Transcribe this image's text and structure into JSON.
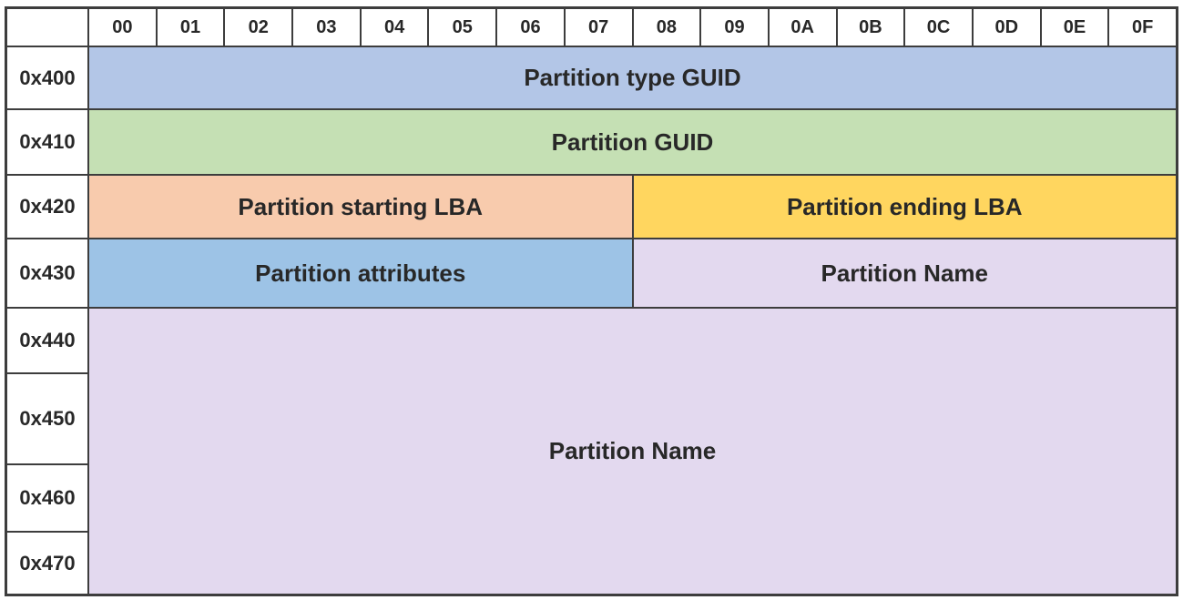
{
  "diagram": {
    "column_headers": [
      "00",
      "01",
      "02",
      "03",
      "04",
      "05",
      "06",
      "07",
      "08",
      "09",
      "0A",
      "0B",
      "0C",
      "0D",
      "0E",
      "0F"
    ],
    "row_headers": [
      "0x400",
      "0x410",
      "0x420",
      "0x430",
      "0x440",
      "0x450",
      "0x460",
      "0x470"
    ],
    "fields": {
      "type_guid": {
        "label": "Partition type GUID",
        "color": "#b3c6e7"
      },
      "guid": {
        "label": "Partition GUID",
        "color": "#c5e0b4"
      },
      "starting_lba": {
        "label": "Partition starting LBA",
        "color": "#f8cbad"
      },
      "ending_lba": {
        "label": "Partition ending LBA",
        "color": "#ffd65f"
      },
      "attributes": {
        "label": "Partition attributes",
        "color": "#9dc3e6"
      },
      "name_high": {
        "label": "Partition Name",
        "color": "#e3d9ef"
      },
      "name": {
        "label": "Partition Name",
        "color": "#e3d9ef"
      }
    },
    "grid_line_color": "#3d3d3d",
    "text_color": "#282828"
  }
}
